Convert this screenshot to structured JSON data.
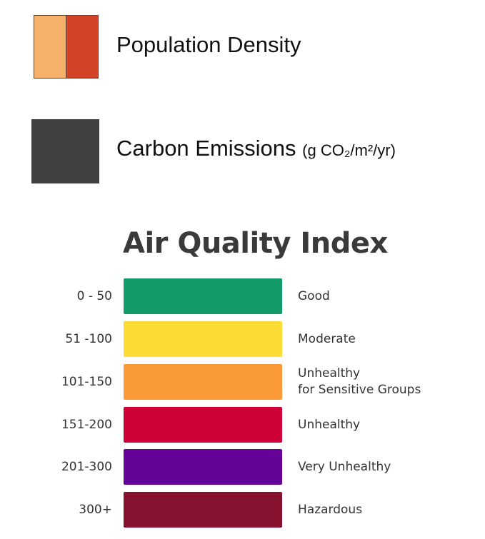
{
  "legend": {
    "population": {
      "label": "Population Density",
      "colors": [
        "#f5b06a",
        "#d24226"
      ]
    },
    "emissions": {
      "label": "Carbon Emissions",
      "unit": "(g CO₂/m²/yr)",
      "color": "#404040"
    }
  },
  "aqi": {
    "title": "Air Quality Index",
    "levels": [
      {
        "range": "0 - 50",
        "label": "Good",
        "label_line2": "",
        "color": "#139c6a"
      },
      {
        "range": "51 -100",
        "label": "Moderate",
        "label_line2": "",
        "color": "#fbdc35"
      },
      {
        "range": "101-150",
        "label": "Unhealthy",
        "label_line2": "for Sensitive Groups",
        "color": "#fb9a38"
      },
      {
        "range": "151-200",
        "label": "Unhealthy",
        "label_line2": "",
        "color": "#cd0135"
      },
      {
        "range": "201-300",
        "label": "Very Unhealthy",
        "label_line2": "",
        "color": "#650399"
      },
      {
        "range": "300+",
        "label": "Hazardous",
        "label_line2": "",
        "color": "#86122f"
      }
    ]
  }
}
